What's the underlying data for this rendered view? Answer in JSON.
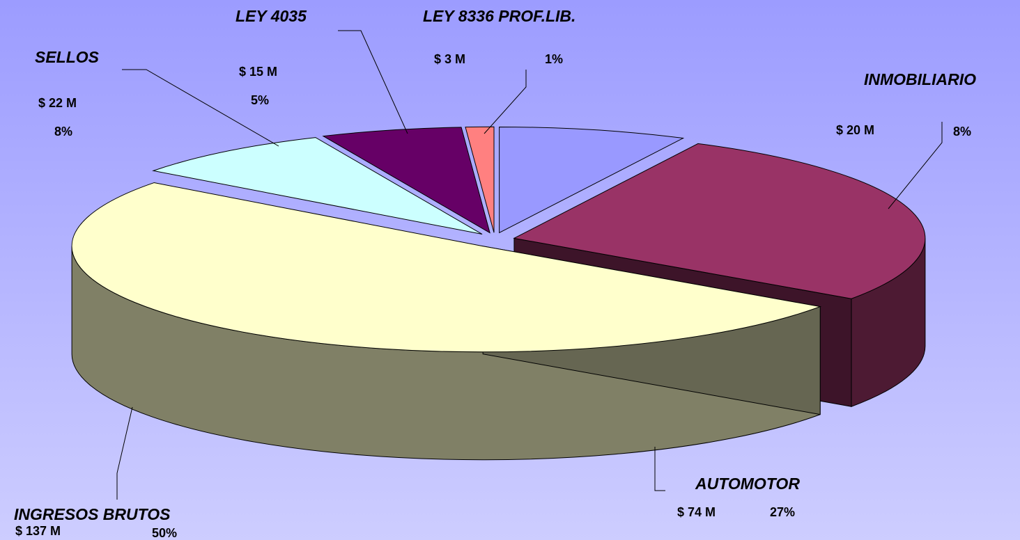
{
  "chart_data": {
    "type": "pie3d",
    "categories": [
      "INMOBILIARIO",
      "AUTOMOTOR",
      "INGRESOS BRUTOS",
      "SELLOS",
      "LEY 4035",
      "LEY 8336 PROF.LIB."
    ],
    "values": [
      20,
      74,
      137,
      22,
      15,
      3
    ],
    "value_labels": [
      "$ 20 M",
      "$ 74 M",
      "$ 137 M",
      "$ 22 M",
      "$ 15 M",
      "$ 3 M"
    ],
    "percents": [
      8,
      27,
      50,
      8,
      5,
      1
    ],
    "percent_labels": [
      "8%",
      "27%",
      "50%",
      "8%",
      "5%",
      "1%"
    ],
    "colors": [
      "#9999ff",
      "#993366",
      "#ffffcc",
      "#ccffff",
      "#660066",
      "#ff8080"
    ]
  }
}
